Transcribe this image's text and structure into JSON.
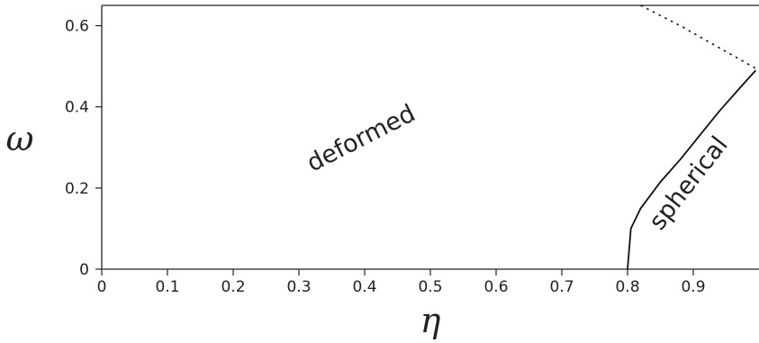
{
  "chart_data": {
    "type": "line",
    "xlabel": "η",
    "ylabel": "ω",
    "xlim": [
      0,
      1
    ],
    "ylim": [
      0,
      0.65
    ],
    "x_ticks": [
      "0",
      "0.1",
      "0.2",
      "0.3",
      "0.4",
      "0.5",
      "0.6",
      "0.7",
      "0.8",
      "0.9"
    ],
    "y_ticks": [
      "0",
      "0.2",
      "0.4",
      "0.6"
    ],
    "grid": false,
    "series": [
      {
        "style": "solid",
        "x": [
          0.8,
          0.805,
          0.82,
          0.85,
          0.88,
          0.91,
          0.94,
          0.97,
          0.995
        ],
        "y": [
          0.0,
          0.1,
          0.15,
          0.215,
          0.27,
          0.33,
          0.39,
          0.445,
          0.49
        ]
      },
      {
        "style": "dotted",
        "x": [
          0.82,
          0.88,
          0.94,
          0.995
        ],
        "y": [
          0.65,
          0.6,
          0.545,
          0.495
        ]
      }
    ],
    "annotations": [
      {
        "text": "deformed",
        "x": 0.4,
        "y": 0.305
      },
      {
        "text": "spherical",
        "x": 0.902,
        "y": 0.2
      }
    ]
  }
}
